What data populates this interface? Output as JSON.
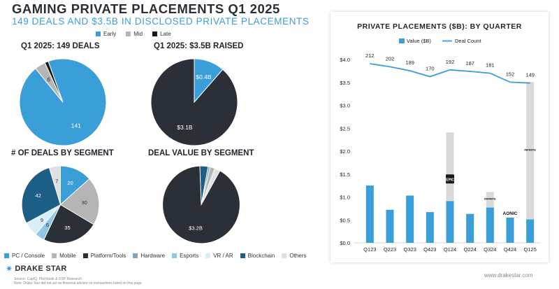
{
  "header": {
    "title": "GAMING PRIVATE PLACEMENTS Q1 2025",
    "subtitle": "149 DEALS AND $3.5B IN DISCLOSED PRIVATE PLACEMENTS"
  },
  "stage_legend": [
    {
      "label": "Early",
      "color": "#3a9fd8"
    },
    {
      "label": "Mid",
      "color": "#b5b5b5"
    },
    {
      "label": "Late",
      "color": "#1a1a1a"
    }
  ],
  "segment_legend": [
    {
      "label": "PC / Console",
      "color": "#3a9fd8"
    },
    {
      "label": "Mobile",
      "color": "#b5b5b5"
    },
    {
      "label": "Platform/Tools",
      "color": "#2b2f38"
    },
    {
      "label": "Hardware",
      "color": "#7ea6c2"
    },
    {
      "label": "Esports",
      "color": "#8ec7e8"
    },
    {
      "label": "VR / AR",
      "color": "#daeef9"
    },
    {
      "label": "Blockchain",
      "color": "#1c5f86"
    },
    {
      "label": "Others",
      "color": "#e0e0e0"
    }
  ],
  "chart_data": [
    {
      "type": "pie",
      "title": "Q1 2025: 149 DEALS",
      "slices": [
        {
          "label": "Early",
          "value": 141,
          "display": "141",
          "color": "#3a9fd8"
        },
        {
          "label": "Mid",
          "value": 6,
          "display": "6",
          "color": "#b5b5b5"
        },
        {
          "label": "Late",
          "value": 2,
          "display": "",
          "color": "#1a1a1a"
        }
      ]
    },
    {
      "type": "pie",
      "title": "Q1 2025: $3.5B RAISED",
      "slices": [
        {
          "label": "Early",
          "value": 0.4,
          "display": "$0.4B",
          "color": "#3a9fd8"
        },
        {
          "label": "Late",
          "value": 3.1,
          "display": "$3.1B",
          "color": "#2b2f38"
        }
      ]
    },
    {
      "type": "pie",
      "title": "# OF DEALS BY SEGMENT",
      "slices": [
        {
          "label": "PC / Console",
          "value": 20,
          "display": "20",
          "color": "#3a9fd8"
        },
        {
          "label": "Mobile",
          "value": 30,
          "display": "30",
          "color": "#b5b5b5"
        },
        {
          "label": "Platform/Tools",
          "value": 35,
          "display": "35",
          "color": "#2b2f38"
        },
        {
          "label": "Hardware",
          "value": 0,
          "display": "",
          "color": "#7ea6c2"
        },
        {
          "label": "Esports",
          "value": 6,
          "display": "6",
          "color": "#8ec7e8"
        },
        {
          "label": "VR / AR",
          "value": 9,
          "display": "9",
          "color": "#daeef9"
        },
        {
          "label": "Blockchain",
          "value": 42,
          "display": "42",
          "color": "#1c5f86"
        },
        {
          "label": "Others",
          "value": 7,
          "display": "7",
          "color": "#e0e0e0"
        }
      ]
    },
    {
      "type": "pie",
      "title": "DEAL VALUE BY SEGMENT",
      "slices": [
        {
          "label": "Platform/Tools",
          "value": 3.2,
          "display": "$3.2B",
          "color": "#2b2f38"
        },
        {
          "label": "Blockchain",
          "value": 0.12,
          "display": "",
          "color": "#1c5f86"
        },
        {
          "label": "Hardware",
          "value": 0.03,
          "display": "",
          "color": "#7ea6c2"
        },
        {
          "label": "Mobile",
          "value": 0.07,
          "display": "",
          "color": "#b5b5b5"
        },
        {
          "label": "Others",
          "value": 0.08,
          "display": "",
          "color": "#e0e0e0"
        }
      ]
    },
    {
      "type": "bar",
      "title": "PRIVATE PLACEMENTS ($B): BY QUARTER",
      "categories": [
        "Q123",
        "Q223",
        "Q323",
        "Q423",
        "Q124",
        "Q224",
        "Q324",
        "Q424",
        "Q125"
      ],
      "ylim": [
        0,
        4.0
      ],
      "yticks": [
        "$0.0",
        "$0.5",
        "$1.0",
        "$1.5",
        "$2.0",
        "$2.5",
        "$3.0",
        "$3.5",
        "$4.0"
      ],
      "series": [
        {
          "name": "Value ($B)",
          "type": "bar",
          "color": "#3a9fd8",
          "values": [
            1.25,
            0.72,
            1.03,
            0.67,
            0.91,
            0.63,
            0.77,
            0.55,
            0.51
          ]
        },
        {
          "name": "",
          "type": "stacked-bar",
          "color": "#dadada",
          "values": [
            0,
            0,
            0,
            0,
            1.5,
            0,
            0.34,
            0,
            3.0
          ]
        },
        {
          "name": "Deal Count",
          "type": "line",
          "color": "#3a9fd8",
          "values": [
            212,
            202,
            189,
            170,
            192,
            187,
            181,
            152,
            149
          ],
          "labels": [
            "212",
            "202",
            "189",
            "170",
            "192",
            "187",
            "181",
            "152",
            "149"
          ]
        }
      ],
      "bar_annotations": [
        {
          "category": "Q124",
          "text": "EPIC",
          "style": "badge"
        },
        {
          "category": "Q324",
          "text": "INFINITE",
          "style": "small"
        },
        {
          "category": "Q424",
          "text": "AONIC",
          "style": "bold"
        },
        {
          "category": "Q125",
          "text": "INFINITE",
          "style": "small"
        }
      ]
    }
  ],
  "footer": {
    "logo_text": "DRAKE STAR",
    "source": "Source: CapIQ, Pitchbook & DSP Research",
    "note": "Note: Drake Star did not act as financial advisor on transactions listed on this page",
    "website": "www.drakestar.com"
  }
}
